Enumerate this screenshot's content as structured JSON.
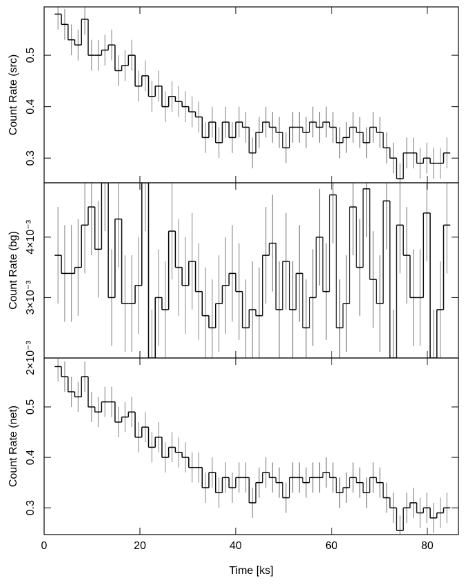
{
  "chart_data": [
    {
      "type": "step",
      "ylabel": "Count Rate (src)",
      "yerr": 0.03,
      "x": [
        2.9,
        4.3,
        5.7,
        7.1,
        8.5,
        9.9,
        11.3,
        12.7,
        14.1,
        15.5,
        16.9,
        18.3,
        19.7,
        21.1,
        22.5,
        23.9,
        25.3,
        26.7,
        28.1,
        29.5,
        30.9,
        32.3,
        33.7,
        35.1,
        36.5,
        37.9,
        39.3,
        40.7,
        42.1,
        43.5,
        44.9,
        46.3,
        47.7,
        49.1,
        50.5,
        51.9,
        53.3,
        54.7,
        56.1,
        57.5,
        58.9,
        60.3,
        61.7,
        63.1,
        64.5,
        65.9,
        67.3,
        68.7,
        70.1,
        71.5,
        72.9,
        74.3,
        75.7,
        77.1,
        78.5,
        79.9,
        81.3,
        82.7,
        84.1
      ],
      "values": [
        0.58,
        0.56,
        0.53,
        0.52,
        0.57,
        0.5,
        0.5,
        0.51,
        0.52,
        0.47,
        0.48,
        0.5,
        0.44,
        0.46,
        0.42,
        0.44,
        0.4,
        0.42,
        0.41,
        0.4,
        0.39,
        0.38,
        0.34,
        0.37,
        0.33,
        0.37,
        0.34,
        0.37,
        0.36,
        0.31,
        0.35,
        0.37,
        0.36,
        0.35,
        0.32,
        0.36,
        0.36,
        0.35,
        0.37,
        0.36,
        0.37,
        0.36,
        0.33,
        0.34,
        0.36,
        0.35,
        0.33,
        0.36,
        0.35,
        0.32,
        0.3,
        0.26,
        0.31,
        0.31,
        0.29,
        0.3,
        0.29,
        0.29,
        0.31
      ],
      "xlim": [
        0,
        86.5
      ],
      "xticks": [
        0,
        20,
        40,
        60,
        80
      ],
      "ylim": [
        0.252,
        0.594
      ],
      "yticks": [
        0.3,
        0.4,
        0.5
      ]
    },
    {
      "type": "step",
      "ylabel": "Count Rate (bg)",
      "yerr": 0.0008,
      "x": [
        2.9,
        4.3,
        5.7,
        7.1,
        8.5,
        9.9,
        11.3,
        12.7,
        14.1,
        15.5,
        16.9,
        18.3,
        19.7,
        21.1,
        22.5,
        23.9,
        25.3,
        26.7,
        28.1,
        29.5,
        30.9,
        32.3,
        33.7,
        35.1,
        36.5,
        37.9,
        39.3,
        40.7,
        42.1,
        43.5,
        44.9,
        46.3,
        47.7,
        49.1,
        50.5,
        51.9,
        53.3,
        54.7,
        56.1,
        57.5,
        58.9,
        60.3,
        61.7,
        63.1,
        64.5,
        65.9,
        67.3,
        68.7,
        70.1,
        71.5,
        72.9,
        74.3,
        75.7,
        77.1,
        78.5,
        79.9,
        81.3,
        82.7,
        84.1
      ],
      "values": [
        0.0037,
        0.0034,
        0.0034,
        0.0035,
        0.0042,
        0.0045,
        0.0038,
        0.0049,
        0.003,
        0.0043,
        0.0029,
        0.0029,
        0.0032,
        0.0049,
        0.002,
        0.003,
        0.0028,
        0.0041,
        0.0035,
        0.0032,
        0.0036,
        0.0031,
        0.0027,
        0.0025,
        0.0029,
        0.0032,
        0.0034,
        0.0031,
        0.0025,
        0.0028,
        0.0027,
        0.0037,
        0.0039,
        0.0028,
        0.0036,
        0.0028,
        0.0034,
        0.0025,
        0.003,
        0.004,
        0.0031,
        0.0047,
        0.0025,
        0.0029,
        0.0045,
        0.0035,
        0.0048,
        0.0033,
        0.0029,
        0.0046,
        0.002,
        0.0042,
        0.0037,
        0.003,
        0.003,
        0.0044,
        0.002,
        0.0028,
        0.0042
      ],
      "xlim": [
        0,
        86.5
      ],
      "xticks": [
        0,
        20,
        40,
        60,
        80
      ],
      "ylim": [
        0.002,
        0.0049
      ],
      "yticks": [
        {
          "value": 0.002,
          "label": "2×10⁻³"
        },
        {
          "value": 0.003,
          "label": "3×10⁻³"
        },
        {
          "value": 0.004,
          "label": "4×10⁻³"
        }
      ]
    },
    {
      "type": "step",
      "ylabel": "Count Rate (net)",
      "xlabel": "Time [ks]",
      "yerr": 0.03,
      "x": [
        2.9,
        4.3,
        5.7,
        7.1,
        8.5,
        9.9,
        11.3,
        12.7,
        14.1,
        15.5,
        16.9,
        18.3,
        19.7,
        21.1,
        22.5,
        23.9,
        25.3,
        26.7,
        28.1,
        29.5,
        30.9,
        32.3,
        33.7,
        35.1,
        36.5,
        37.9,
        39.3,
        40.7,
        42.1,
        43.5,
        44.9,
        46.3,
        47.7,
        49.1,
        50.5,
        51.9,
        53.3,
        54.7,
        56.1,
        57.5,
        58.9,
        60.3,
        61.7,
        63.1,
        64.5,
        65.9,
        67.3,
        68.7,
        70.1,
        71.5,
        72.9,
        74.3,
        75.7,
        77.1,
        78.5,
        79.9,
        81.3,
        82.7,
        84.1
      ],
      "values": [
        0.58,
        0.56,
        0.53,
        0.52,
        0.56,
        0.5,
        0.49,
        0.51,
        0.51,
        0.47,
        0.48,
        0.49,
        0.44,
        0.46,
        0.42,
        0.44,
        0.4,
        0.42,
        0.41,
        0.4,
        0.38,
        0.38,
        0.34,
        0.37,
        0.33,
        0.36,
        0.34,
        0.36,
        0.36,
        0.31,
        0.35,
        0.37,
        0.36,
        0.35,
        0.32,
        0.36,
        0.36,
        0.35,
        0.36,
        0.36,
        0.37,
        0.36,
        0.33,
        0.34,
        0.36,
        0.35,
        0.33,
        0.36,
        0.35,
        0.32,
        0.3,
        0.255,
        0.3,
        0.31,
        0.29,
        0.3,
        0.28,
        0.29,
        0.3
      ],
      "xlim": [
        0,
        86.5
      ],
      "xticks": [
        0,
        20,
        40,
        60,
        80
      ],
      "ylim": [
        0.247,
        0.597
      ],
      "yticks": [
        0.3,
        0.4,
        0.5
      ]
    }
  ]
}
